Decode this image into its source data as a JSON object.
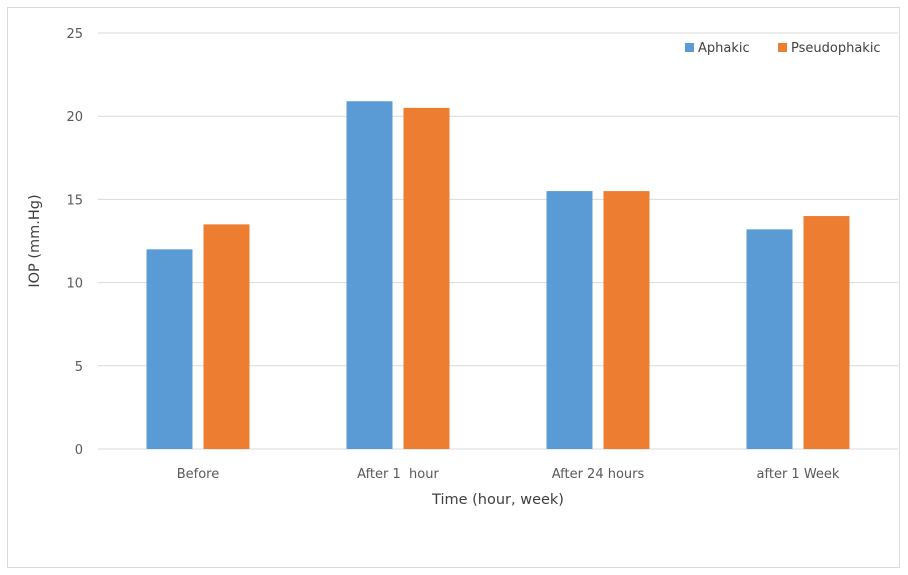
{
  "chart_data": {
    "type": "bar",
    "title": "",
    "xlabel": "Time (hour, week)",
    "ylabel": "IOP (mm.Hg)",
    "categories": [
      "Before",
      "After 1  hour",
      "After 24 hours",
      "after 1 Week"
    ],
    "series": [
      {
        "name": "Aphakic",
        "color": "#5b9bd5",
        "values": [
          12.0,
          20.9,
          15.5,
          13.2
        ]
      },
      {
        "name": "Pseudophakic",
        "color": "#ed7d31",
        "values": [
          13.5,
          20.5,
          15.5,
          14.0
        ]
      }
    ],
    "ylim": [
      0,
      25
    ],
    "yticks": [
      0,
      5,
      10,
      15,
      20,
      25
    ],
    "grid": true,
    "legend_position": "top-right"
  }
}
